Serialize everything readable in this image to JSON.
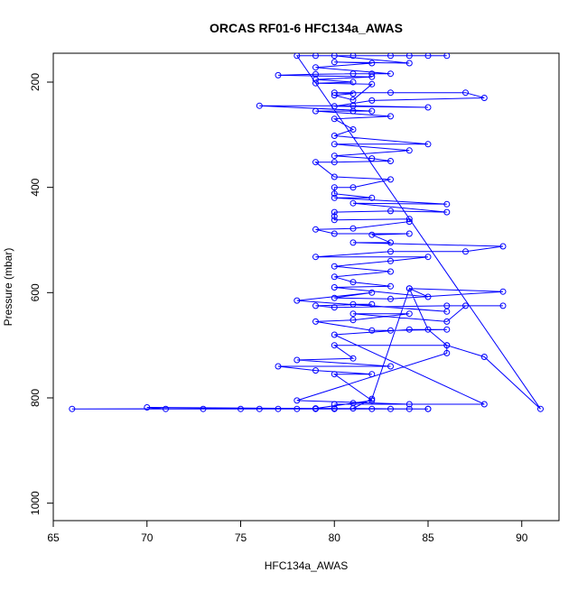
{
  "chart_data": {
    "type": "line",
    "title": "ORCAS RF01-6 HFC134a_AWAS",
    "xlabel": "HFC134a_AWAS",
    "ylabel": "Pressure (mbar)",
    "xlim": [
      65,
      92
    ],
    "ylim": [
      1030,
      145
    ],
    "y_reversed": true,
    "x_ticks": [
      "65",
      "70",
      "75",
      "80",
      "85",
      "90"
    ],
    "y_ticks": [
      "200",
      "400",
      "600",
      "800",
      "1000"
    ],
    "marker": "open-circle",
    "series": [
      {
        "color": "#0000ff",
        "points": [
          [
            80,
            820
          ],
          [
            66,
            821
          ],
          [
            85,
            821
          ],
          [
            79,
            820
          ],
          [
            81,
            810
          ],
          [
            82,
            805
          ],
          [
            80,
            755
          ],
          [
            82,
            755
          ],
          [
            79,
            748
          ],
          [
            77,
            740
          ],
          [
            83,
            740
          ],
          [
            78,
            728
          ],
          [
            81,
            725
          ],
          [
            80,
            700
          ],
          [
            86,
            700
          ],
          [
            86,
            715
          ],
          [
            78,
            805
          ],
          [
            84,
            812
          ],
          [
            80,
            812
          ],
          [
            88,
            812
          ],
          [
            80,
            680
          ],
          [
            84,
            670
          ],
          [
            86,
            670
          ],
          [
            83,
            672
          ],
          [
            82,
            672
          ],
          [
            79,
            655
          ],
          [
            81,
            652
          ],
          [
            84,
            640
          ],
          [
            81,
            640
          ],
          [
            86,
            655
          ],
          [
            87,
            625
          ],
          [
            89,
            625
          ],
          [
            86,
            625
          ],
          [
            80,
            628
          ],
          [
            79,
            625
          ],
          [
            82,
            622
          ],
          [
            81,
            622
          ],
          [
            86,
            636
          ],
          [
            78,
            615
          ],
          [
            82,
            600
          ],
          [
            80,
            610
          ],
          [
            83,
            612
          ],
          [
            89,
            598
          ],
          [
            84,
            592
          ],
          [
            85,
            608
          ],
          [
            80,
            590
          ],
          [
            83,
            588
          ],
          [
            81,
            580
          ],
          [
            80,
            570
          ],
          [
            83,
            560
          ],
          [
            80,
            550
          ],
          [
            83,
            540
          ],
          [
            85,
            532
          ],
          [
            79,
            532
          ],
          [
            83,
            522
          ],
          [
            87,
            522
          ],
          [
            89,
            512
          ],
          [
            81,
            505
          ],
          [
            83,
            505
          ],
          [
            82,
            490
          ],
          [
            84,
            488
          ],
          [
            80,
            488
          ],
          [
            79,
            480
          ],
          [
            81,
            478
          ],
          [
            84,
            465
          ],
          [
            84,
            460
          ],
          [
            80,
            462
          ],
          [
            80,
            455
          ],
          [
            80,
            447
          ],
          [
            83,
            445
          ],
          [
            86,
            447
          ],
          [
            81,
            430
          ],
          [
            86,
            432
          ],
          [
            80,
            420
          ],
          [
            82,
            420
          ],
          [
            80,
            412
          ],
          [
            80,
            400
          ],
          [
            81,
            400
          ],
          [
            83,
            385
          ],
          [
            80,
            380
          ],
          [
            79,
            352
          ],
          [
            80,
            352
          ],
          [
            83,
            350
          ],
          [
            82,
            345
          ],
          [
            80,
            340
          ],
          [
            84,
            330
          ],
          [
            80,
            318
          ],
          [
            85,
            318
          ],
          [
            80,
            302
          ],
          [
            81,
            290
          ],
          [
            80,
            270
          ],
          [
            83,
            265
          ],
          [
            79,
            255
          ],
          [
            81,
            255
          ],
          [
            82,
            255
          ],
          [
            76,
            245
          ],
          [
            81,
            245
          ],
          [
            85,
            248
          ],
          [
            80,
            246
          ],
          [
            82,
            235
          ],
          [
            88,
            230
          ],
          [
            87,
            220
          ],
          [
            83,
            220
          ],
          [
            80,
            220
          ],
          [
            81,
            222
          ],
          [
            80,
            225
          ],
          [
            81,
            234
          ],
          [
            82,
            204
          ],
          [
            79,
            202
          ],
          [
            81,
            200
          ],
          [
            79,
            195
          ],
          [
            82,
            190
          ],
          [
            77,
            187
          ],
          [
            79,
            185
          ],
          [
            81,
            184
          ],
          [
            82,
            184
          ],
          [
            83,
            184
          ],
          [
            79,
            172
          ],
          [
            82,
            164
          ],
          [
            80,
            162
          ],
          [
            84,
            164
          ],
          [
            80,
            150
          ],
          [
            81,
            150
          ],
          [
            83,
            150
          ],
          [
            84,
            150
          ],
          [
            85,
            150
          ],
          [
            86,
            150
          ],
          [
            79,
            150
          ],
          [
            78,
            150
          ],
          [
            91,
            821
          ],
          [
            88,
            722
          ],
          [
            86,
            700
          ],
          [
            85,
            670
          ],
          [
            84,
            592
          ],
          [
            82,
            802
          ],
          [
            81,
            820
          ],
          [
            84,
            821
          ],
          [
            83,
            821
          ],
          [
            80,
            821
          ],
          [
            79,
            821
          ],
          [
            77,
            821
          ],
          [
            76,
            821
          ],
          [
            75,
            821
          ],
          [
            73,
            821
          ],
          [
            71,
            821
          ],
          [
            70,
            818
          ],
          [
            82,
            821
          ],
          [
            78,
            821
          ],
          [
            85,
            821
          ]
        ]
      }
    ]
  }
}
